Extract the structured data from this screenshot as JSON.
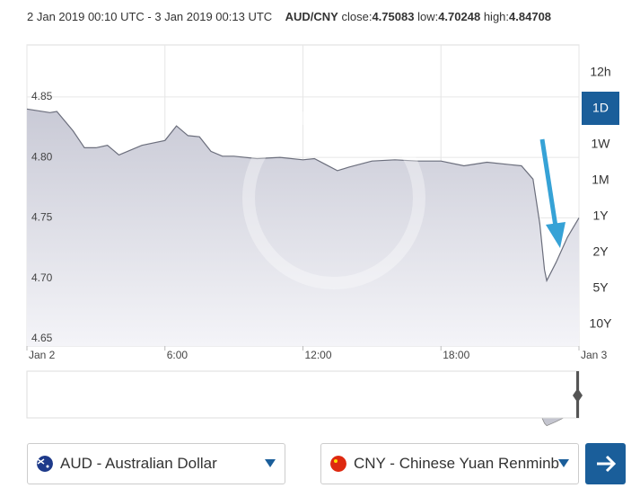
{
  "header": {
    "range": "2 Jan 2019 00:10 UTC - 3 Jan 2019 00:13 UTC",
    "pair": "AUD/CNY",
    "close_label": "close:",
    "close": 4.75083,
    "low_label": "low:",
    "low": 4.70248,
    "high_label": "high:",
    "high": 4.84708
  },
  "chart_data": {
    "type": "area",
    "x": [
      0,
      1,
      1.3,
      2,
      2.5,
      3,
      3.5,
      4,
      5,
      6,
      6.5,
      7,
      7.5,
      8,
      8.5,
      9,
      10,
      11,
      12,
      12.5,
      13,
      13.5,
      14,
      15,
      16,
      17,
      18,
      19,
      20,
      21,
      21.5,
      22,
      22.3,
      22.5,
      22.6,
      23,
      23.5,
      24
    ],
    "values": [
      4.84,
      4.837,
      4.838,
      4.822,
      4.808,
      4.808,
      4.81,
      4.802,
      4.81,
      4.814,
      4.826,
      4.818,
      4.817,
      4.805,
      4.801,
      4.801,
      4.799,
      4.8,
      4.798,
      4.799,
      4.794,
      4.789,
      4.792,
      4.797,
      4.798,
      4.797,
      4.797,
      4.793,
      4.796,
      4.794,
      4.793,
      4.782,
      4.745,
      4.707,
      4.698,
      4.713,
      4.734,
      4.75
    ],
    "color": "#6b6e7c",
    "xlim": [
      0,
      24
    ],
    "ylim": [
      4.644,
      4.893
    ],
    "xticks": [
      {
        "value": 0,
        "label": "Jan 2"
      },
      {
        "value": 6,
        "label": "6:00"
      },
      {
        "value": 12,
        "label": "12:00"
      },
      {
        "value": 18,
        "label": "18:00"
      },
      {
        "value": 24,
        "label": "Jan 3"
      }
    ],
    "yticks": [
      4.65,
      {
        "value": 4.7,
        "label": "4.70"
      },
      4.75,
      {
        "value": 4.8,
        "label": "4.80"
      },
      4.85
    ],
    "grid": true
  },
  "periods": [
    "12h",
    "1D",
    "1W",
    "1M",
    "1Y",
    "2Y",
    "5Y",
    "10Y"
  ],
  "active_period": 1,
  "from_currency": "AUD - Australian Dollar",
  "to_currency": "CNY - Chinese Yuan Renminb"
}
